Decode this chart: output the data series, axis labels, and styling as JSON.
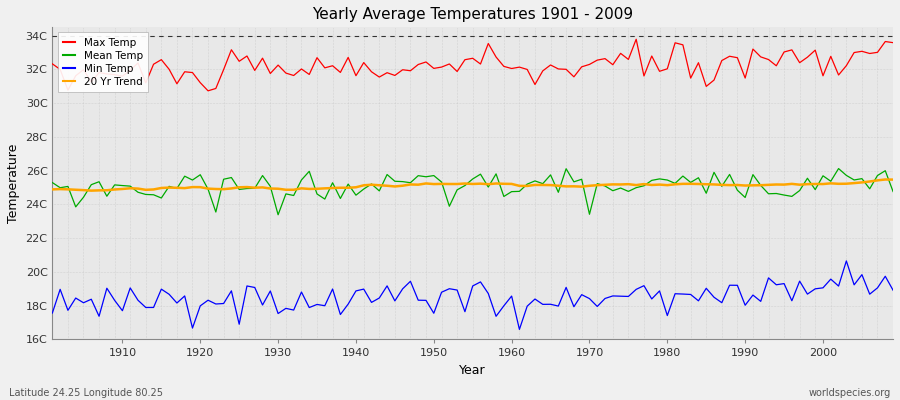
{
  "title": "Yearly Average Temperatures 1901 - 2009",
  "xlabel": "Year",
  "ylabel": "Temperature",
  "footer_left": "Latitude 24.25 Longitude 80.25",
  "footer_right": "worldspecies.org",
  "xlim": [
    1901,
    2009
  ],
  "ylim": [
    16,
    34.5
  ],
  "yticks": [
    16,
    18,
    20,
    22,
    24,
    26,
    28,
    30,
    32,
    34
  ],
  "ytick_labels": [
    "16C",
    "18C",
    "20C",
    "22C",
    "24C",
    "26C",
    "28C",
    "30C",
    "32C",
    "34C"
  ],
  "xticks": [
    1910,
    1920,
    1930,
    1940,
    1950,
    1960,
    1970,
    1980,
    1990,
    2000
  ],
  "plot_bg_color": "#e8e8e8",
  "fig_bg_color": "#f0f0f0",
  "grid_color": "#c8c8c8",
  "line_color_max": "#ff0000",
  "line_color_mean": "#00aa00",
  "line_color_min": "#0000ff",
  "line_color_trend": "#ffa500",
  "legend_labels": [
    "Max Temp",
    "Mean Temp",
    "Min Temp",
    "20 Yr Trend"
  ],
  "dotted_line_y": 34,
  "years_start": 1901,
  "years_end": 2009,
  "seed": 42
}
